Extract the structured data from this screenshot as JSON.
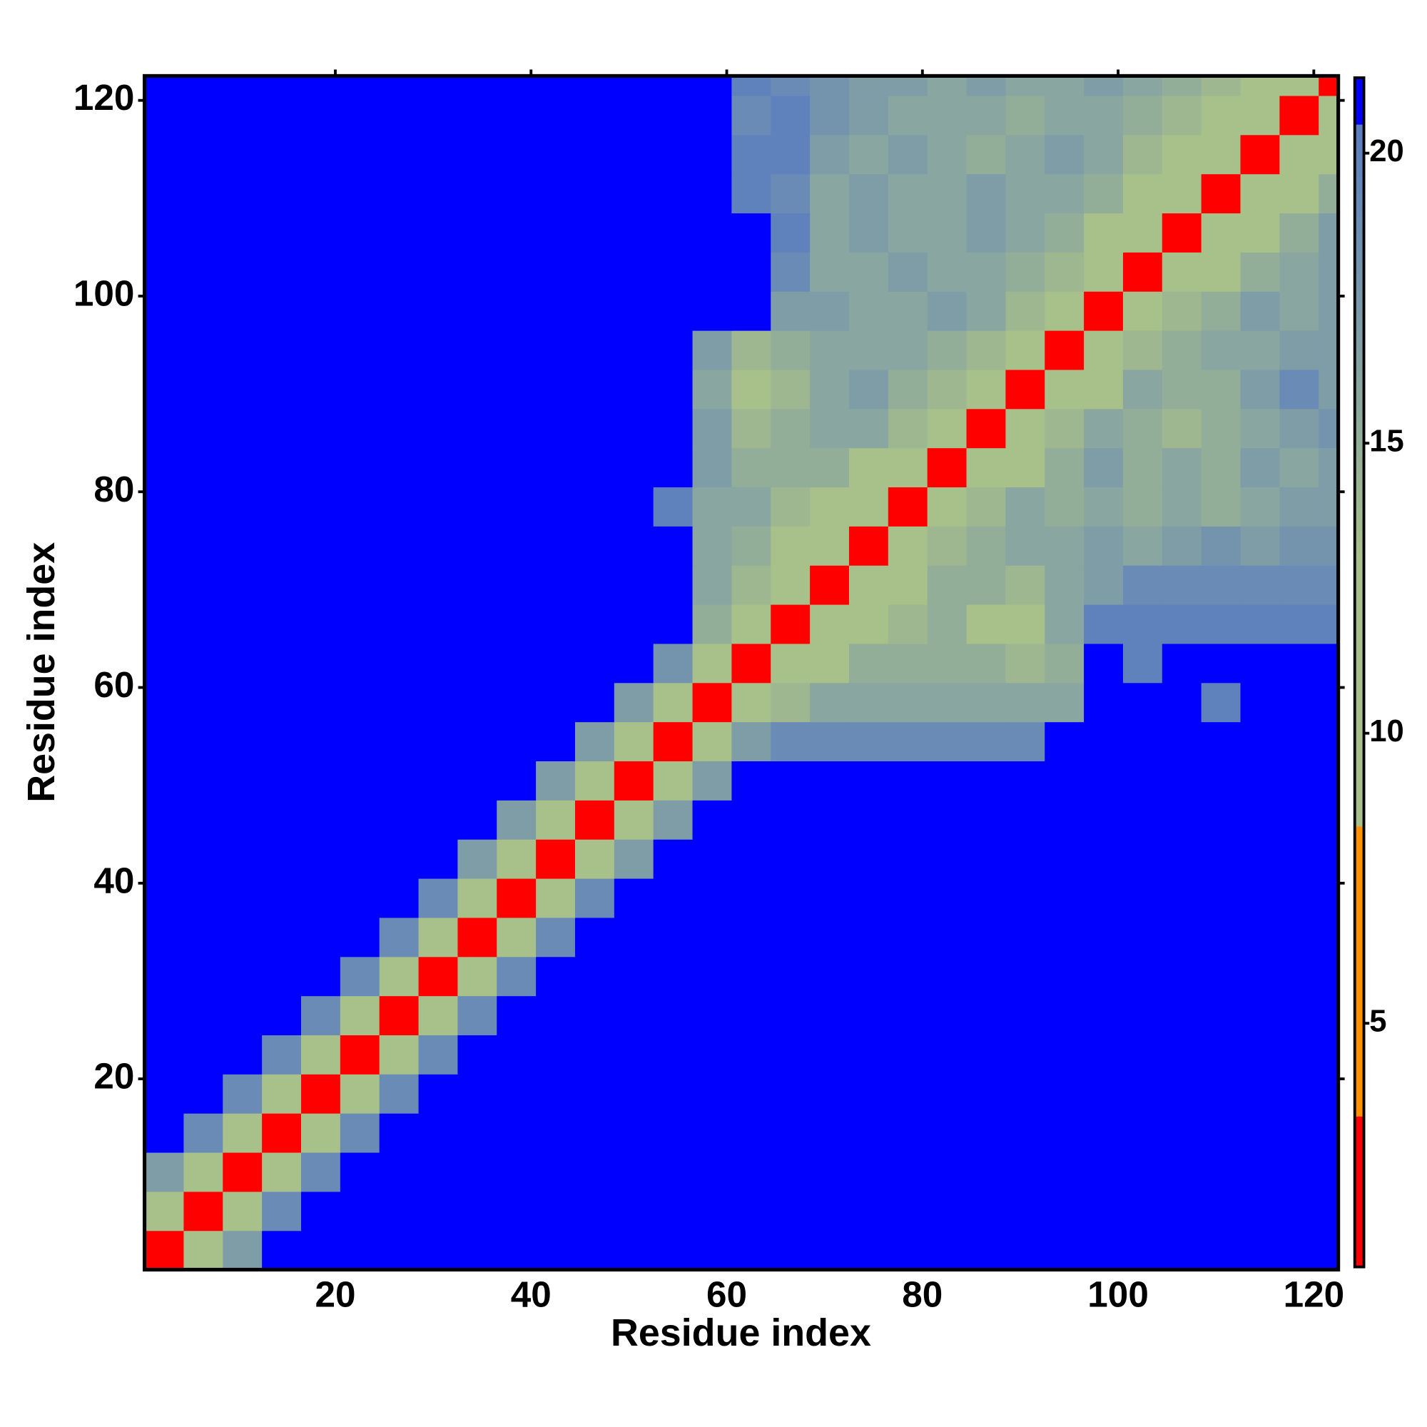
{
  "chart_data": {
    "type": "heatmap",
    "x_label": "Residue index",
    "y_label": "Residue index",
    "xlim": [
      0.5,
      122.5
    ],
    "ylim": [
      0.5,
      122.5
    ],
    "xticks": [
      20,
      40,
      60,
      80,
      100,
      120
    ],
    "yticks": [
      20,
      40,
      60,
      80,
      100,
      120
    ],
    "x": [
      2.5,
      6.5,
      10.5,
      14.5,
      18.5,
      22.5,
      26.5,
      30.5,
      34.5,
      38.5,
      42.5,
      46.5,
      50.5,
      54.5,
      58.5,
      62.5,
      66.5,
      70.5,
      74.5,
      78.5,
      82.5,
      86.5,
      90.5,
      94.5,
      98.5,
      102.5,
      106.5,
      110.5,
      114.5,
      118.5,
      122.5
    ],
    "y": [
      2.5,
      6.5,
      10.5,
      14.5,
      18.5,
      22.5,
      26.5,
      30.5,
      34.5,
      38.5,
      42.5,
      46.5,
      50.5,
      54.5,
      58.5,
      62.5,
      66.5,
      70.5,
      74.5,
      78.5,
      82.5,
      86.5,
      90.5,
      94.5,
      98.5,
      102.5,
      106.5,
      110.5,
      114.5,
      118.5,
      122.5
    ],
    "values": [
      [
        3,
        11,
        17,
        21,
        21,
        21,
        21,
        21,
        21,
        21,
        21,
        21,
        21,
        21,
        21,
        21,
        21,
        21,
        21,
        21,
        21,
        21,
        21,
        21,
        21,
        21,
        21,
        21,
        21,
        21,
        21
      ],
      [
        11,
        3,
        11,
        19,
        21,
        21,
        21,
        21,
        21,
        21,
        21,
        21,
        21,
        21,
        21,
        21,
        21,
        21,
        21,
        21,
        21,
        21,
        21,
        21,
        21,
        21,
        21,
        21,
        21,
        21,
        21
      ],
      [
        17,
        11,
        3,
        11,
        19,
        21,
        21,
        21,
        21,
        21,
        21,
        21,
        21,
        21,
        21,
        21,
        21,
        21,
        21,
        21,
        21,
        21,
        21,
        21,
        21,
        21,
        21,
        21,
        21,
        21,
        21
      ],
      [
        21,
        19,
        11,
        3,
        11,
        19,
        21,
        21,
        21,
        21,
        21,
        21,
        21,
        21,
        21,
        21,
        21,
        21,
        21,
        21,
        21,
        21,
        21,
        21,
        21,
        21,
        21,
        21,
        21,
        21,
        21
      ],
      [
        21,
        21,
        19,
        11,
        3,
        11,
        19,
        21,
        21,
        21,
        21,
        21,
        21,
        21,
        21,
        21,
        21,
        21,
        21,
        21,
        21,
        21,
        21,
        21,
        21,
        21,
        21,
        21,
        21,
        21,
        21
      ],
      [
        21,
        21,
        21,
        19,
        11,
        3,
        11,
        19,
        21,
        21,
        21,
        21,
        21,
        21,
        21,
        21,
        21,
        21,
        21,
        21,
        21,
        21,
        21,
        21,
        21,
        21,
        21,
        21,
        21,
        21,
        21
      ],
      [
        21,
        21,
        21,
        21,
        19,
        11,
        3,
        11,
        19,
        21,
        21,
        21,
        21,
        21,
        21,
        21,
        21,
        21,
        21,
        21,
        21,
        21,
        21,
        21,
        21,
        21,
        21,
        21,
        21,
        21,
        21
      ],
      [
        21,
        21,
        21,
        21,
        21,
        19,
        11,
        3,
        11,
        19,
        21,
        21,
        21,
        21,
        21,
        21,
        21,
        21,
        21,
        21,
        21,
        21,
        21,
        21,
        21,
        21,
        21,
        21,
        21,
        21,
        21
      ],
      [
        21,
        21,
        21,
        21,
        21,
        21,
        19,
        11,
        3,
        11,
        19,
        21,
        21,
        21,
        21,
        21,
        21,
        21,
        21,
        21,
        21,
        21,
        21,
        21,
        21,
        21,
        21,
        21,
        21,
        21,
        21
      ],
      [
        21,
        21,
        21,
        21,
        21,
        21,
        21,
        19,
        11,
        3,
        11,
        19,
        21,
        21,
        21,
        21,
        21,
        21,
        21,
        21,
        21,
        21,
        21,
        21,
        21,
        21,
        21,
        21,
        21,
        21,
        21
      ],
      [
        21,
        21,
        21,
        21,
        21,
        21,
        21,
        21,
        17,
        11,
        3,
        11,
        17,
        21,
        21,
        21,
        21,
        21,
        21,
        21,
        21,
        21,
        21,
        21,
        21,
        21,
        21,
        21,
        21,
        21,
        21
      ],
      [
        21,
        21,
        21,
        21,
        21,
        21,
        21,
        21,
        21,
        17,
        11,
        3,
        11,
        17,
        21,
        21,
        21,
        21,
        21,
        21,
        21,
        21,
        21,
        21,
        21,
        21,
        21,
        21,
        21,
        21,
        21
      ],
      [
        21,
        21,
        21,
        21,
        21,
        21,
        21,
        21,
        21,
        21,
        17,
        11,
        3,
        11,
        17,
        21,
        21,
        21,
        21,
        21,
        21,
        21,
        21,
        21,
        21,
        21,
        21,
        21,
        21,
        21,
        21
      ],
      [
        21,
        21,
        21,
        21,
        21,
        21,
        21,
        21,
        21,
        21,
        21,
        17,
        11,
        3,
        11,
        17,
        19,
        19,
        19,
        19,
        19,
        19,
        19,
        21,
        21,
        21,
        21,
        21,
        21,
        21,
        21
      ],
      [
        21,
        21,
        21,
        21,
        21,
        21,
        21,
        21,
        21,
        21,
        21,
        21,
        17,
        11,
        3,
        11,
        14,
        16,
        16,
        16,
        16,
        16,
        16,
        16,
        21,
        21,
        21,
        20,
        21,
        21,
        21
      ],
      [
        21,
        21,
        21,
        21,
        21,
        21,
        21,
        21,
        21,
        21,
        21,
        21,
        21,
        18,
        11,
        3,
        11,
        13,
        15,
        15,
        15,
        15,
        14,
        15,
        21,
        20,
        21,
        21,
        21,
        21,
        21
      ],
      [
        21,
        21,
        21,
        21,
        21,
        21,
        21,
        21,
        21,
        21,
        21,
        21,
        21,
        21,
        15,
        11,
        3,
        10,
        13,
        14,
        15,
        12,
        13,
        16,
        20,
        20,
        20,
        20,
        20,
        20,
        20
      ],
      [
        21,
        21,
        21,
        21,
        21,
        21,
        21,
        21,
        21,
        21,
        21,
        21,
        21,
        21,
        16,
        14,
        10,
        3,
        10,
        13,
        15,
        15,
        14,
        16,
        17,
        19,
        19,
        19,
        19,
        19,
        19
      ],
      [
        21,
        21,
        21,
        21,
        21,
        21,
        21,
        21,
        21,
        21,
        21,
        21,
        21,
        21,
        16,
        15,
        13,
        10,
        3,
        10,
        14,
        15,
        16,
        16,
        17,
        16,
        17,
        18,
        17,
        18,
        18
      ],
      [
        21,
        21,
        21,
        21,
        21,
        21,
        21,
        21,
        21,
        21,
        21,
        21,
        21,
        20,
        16,
        16,
        14,
        13,
        10,
        3,
        10,
        14,
        16,
        15,
        16,
        15,
        16,
        15,
        16,
        17,
        17
      ],
      [
        21,
        21,
        21,
        21,
        21,
        21,
        21,
        21,
        21,
        21,
        21,
        21,
        21,
        21,
        17,
        15,
        15,
        15,
        13,
        10,
        3,
        10,
        13,
        15,
        17,
        15,
        16,
        15,
        17,
        16,
        17
      ],
      [
        21,
        21,
        21,
        21,
        21,
        21,
        21,
        21,
        21,
        21,
        21,
        21,
        21,
        21,
        17,
        14,
        15,
        16,
        16,
        14,
        11,
        3,
        10,
        14,
        16,
        15,
        14,
        15,
        16,
        17,
        18
      ],
      [
        21,
        21,
        21,
        21,
        21,
        21,
        21,
        21,
        21,
        21,
        21,
        21,
        21,
        21,
        16,
        12,
        14,
        16,
        17,
        15,
        14,
        10,
        3,
        10,
        13,
        16,
        15,
        15,
        17,
        19,
        17
      ],
      [
        21,
        21,
        21,
        21,
        21,
        21,
        21,
        21,
        21,
        21,
        21,
        21,
        21,
        21,
        17,
        14,
        15,
        16,
        16,
        16,
        15,
        14,
        10,
        3,
        10,
        14,
        15,
        16,
        16,
        17,
        17
      ],
      [
        21,
        21,
        21,
        21,
        21,
        21,
        21,
        21,
        21,
        21,
        21,
        21,
        21,
        21,
        21,
        21,
        17,
        17,
        16,
        16,
        17,
        16,
        14,
        10,
        3,
        10,
        14,
        15,
        17,
        16,
        17
      ],
      [
        21,
        21,
        21,
        21,
        21,
        21,
        21,
        21,
        21,
        21,
        21,
        21,
        21,
        21,
        21,
        21,
        19,
        16,
        16,
        17,
        16,
        16,
        15,
        14,
        10,
        3,
        10,
        13,
        15,
        16,
        17
      ],
      [
        21,
        21,
        21,
        21,
        21,
        21,
        21,
        21,
        21,
        21,
        21,
        21,
        21,
        21,
        21,
        21,
        20,
        16,
        17,
        16,
        16,
        17,
        16,
        15,
        13,
        10,
        3,
        10,
        13,
        15,
        17
      ],
      [
        21,
        21,
        21,
        21,
        21,
        21,
        21,
        21,
        21,
        21,
        21,
        21,
        21,
        21,
        21,
        20,
        19,
        16,
        17,
        16,
        16,
        17,
        16,
        16,
        15,
        13,
        10,
        3,
        10,
        13,
        15
      ],
      [
        21,
        21,
        21,
        21,
        21,
        21,
        21,
        21,
        21,
        21,
        21,
        21,
        21,
        21,
        21,
        20,
        20,
        17,
        16,
        17,
        16,
        15,
        16,
        17,
        16,
        14,
        13,
        10,
        3,
        10,
        13
      ],
      [
        21,
        21,
        21,
        21,
        21,
        21,
        21,
        21,
        21,
        21,
        21,
        21,
        21,
        21,
        21,
        19,
        20,
        18,
        17,
        16,
        16,
        16,
        15,
        16,
        16,
        15,
        14,
        13,
        10,
        3,
        10
      ],
      [
        21,
        21,
        21,
        21,
        21,
        21,
        21,
        21,
        21,
        21,
        21,
        21,
        21,
        21,
        21,
        20,
        19,
        18,
        17,
        17,
        16,
        17,
        16,
        16,
        17,
        16,
        15,
        14,
        13,
        10,
        3
      ]
    ],
    "clim": [
      0.8,
      21.3
    ],
    "colorbar_ticks": [
      5,
      10,
      15,
      20
    ],
    "colorscale": [
      [
        0.8,
        "#ff0000"
      ],
      [
        3.4,
        "#ff0000"
      ],
      [
        3.4,
        "#ff9000"
      ],
      [
        8.4,
        "#ff9000"
      ],
      [
        8.4,
        "#a8c08a"
      ],
      [
        13,
        "#a8c08a"
      ],
      [
        20.5,
        "#5a7ec0"
      ],
      [
        20.5,
        "#0000ff"
      ],
      [
        21.3,
        "#0000ff"
      ]
    ]
  }
}
